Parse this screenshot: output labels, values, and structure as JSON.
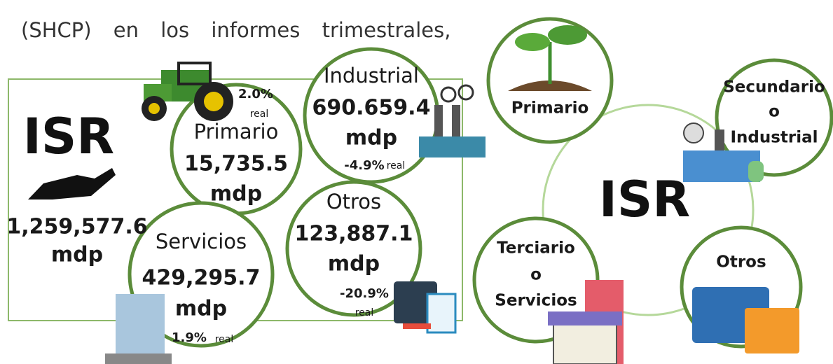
{
  "header": {
    "text": "(SHCP) en los informes trimestrales,"
  },
  "total": {
    "label": "ISR",
    "amount": "1,259,577.6",
    "unit": "mdp"
  },
  "sectors": [
    {
      "name": "Primario",
      "amount": "15,735.5",
      "unit": "mdp",
      "change": "2.0%",
      "change_note": "real"
    },
    {
      "name": "Industrial",
      "amount": "690.659.4",
      "unit": "mdp",
      "change": "-4.9%",
      "change_note": "real"
    },
    {
      "name": "Servicios",
      "amount": "429,295.7",
      "unit": "mdp",
      "change": "1.9%",
      "change_note": "real"
    },
    {
      "name": "Otros",
      "amount": "123,887.1",
      "unit": "mdp",
      "change": "-20.9%",
      "change_note": "real"
    }
  ],
  "diagram": {
    "center": "ISR",
    "nodes": [
      {
        "lines": [
          "Primario"
        ]
      },
      {
        "lines": [
          "Secundario",
          "o",
          "Industrial"
        ]
      },
      {
        "lines": [
          "Terciario",
          "o",
          "Servicios"
        ]
      },
      {
        "lines": [
          "Otros"
        ]
      }
    ]
  }
}
